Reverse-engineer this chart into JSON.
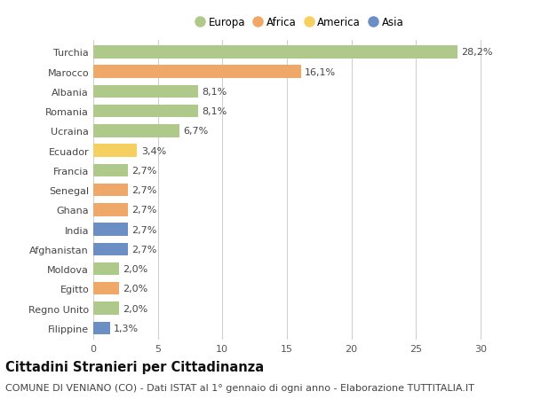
{
  "countries": [
    "Turchia",
    "Marocco",
    "Albania",
    "Romania",
    "Ucraina",
    "Ecuador",
    "Francia",
    "Senegal",
    "Ghana",
    "India",
    "Afghanistan",
    "Moldova",
    "Egitto",
    "Regno Unito",
    "Filippine"
  ],
  "values": [
    28.2,
    16.1,
    8.1,
    8.1,
    6.7,
    3.4,
    2.7,
    2.7,
    2.7,
    2.7,
    2.7,
    2.0,
    2.0,
    2.0,
    1.3
  ],
  "labels": [
    "28,2%",
    "16,1%",
    "8,1%",
    "8,1%",
    "6,7%",
    "3,4%",
    "2,7%",
    "2,7%",
    "2,7%",
    "2,7%",
    "2,7%",
    "2,0%",
    "2,0%",
    "2,0%",
    "1,3%"
  ],
  "continents": [
    "Europa",
    "Africa",
    "Europa",
    "Europa",
    "Europa",
    "America",
    "Europa",
    "Africa",
    "Africa",
    "Asia",
    "Asia",
    "Europa",
    "Africa",
    "Europa",
    "Asia"
  ],
  "continent_colors": {
    "Europa": "#aec98a",
    "Africa": "#f0a868",
    "America": "#f5d060",
    "Asia": "#6b8ec4"
  },
  "legend_order": [
    "Europa",
    "Africa",
    "America",
    "Asia"
  ],
  "title": "Cittadini Stranieri per Cittadinanza",
  "subtitle": "COMUNE DI VENIANO (CO) - Dati ISTAT al 1° gennaio di ogni anno - Elaborazione TUTTITALIA.IT",
  "xlim": [
    0,
    32
  ],
  "xticks": [
    0,
    5,
    10,
    15,
    20,
    25,
    30
  ],
  "bg_color": "#ffffff",
  "grid_color": "#d0d0d0",
  "bar_height": 0.65,
  "title_fontsize": 10.5,
  "subtitle_fontsize": 8.0,
  "label_fontsize": 8.0,
  "tick_fontsize": 8.0,
  "legend_fontsize": 8.5
}
